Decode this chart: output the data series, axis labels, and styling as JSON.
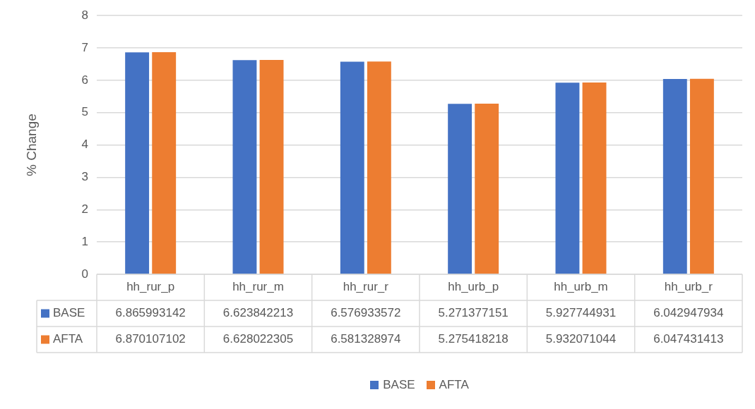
{
  "chart_data": {
    "type": "bar",
    "ylabel": "% Change",
    "categories": [
      "hh_rur_p",
      "hh_rur_m",
      "hh_rur_r",
      "hh_urb_p",
      "hh_urb_m",
      "hh_urb_r"
    ],
    "series": [
      {
        "name": "BASE",
        "color": "#4472c4",
        "values": [
          6.865993142,
          6.623842213,
          6.576933572,
          5.271377151,
          5.927744931,
          6.042947934
        ]
      },
      {
        "name": "AFTA",
        "color": "#ed7d31",
        "values": [
          6.870107102,
          6.628022305,
          6.581328974,
          5.275418218,
          5.932071044,
          6.047431413
        ]
      }
    ],
    "ylim": [
      0,
      8
    ],
    "yticks": [
      0,
      1,
      2,
      3,
      4,
      5,
      6,
      7,
      8
    ],
    "grid": "y",
    "legend": "bottom",
    "data_labels": true
  }
}
